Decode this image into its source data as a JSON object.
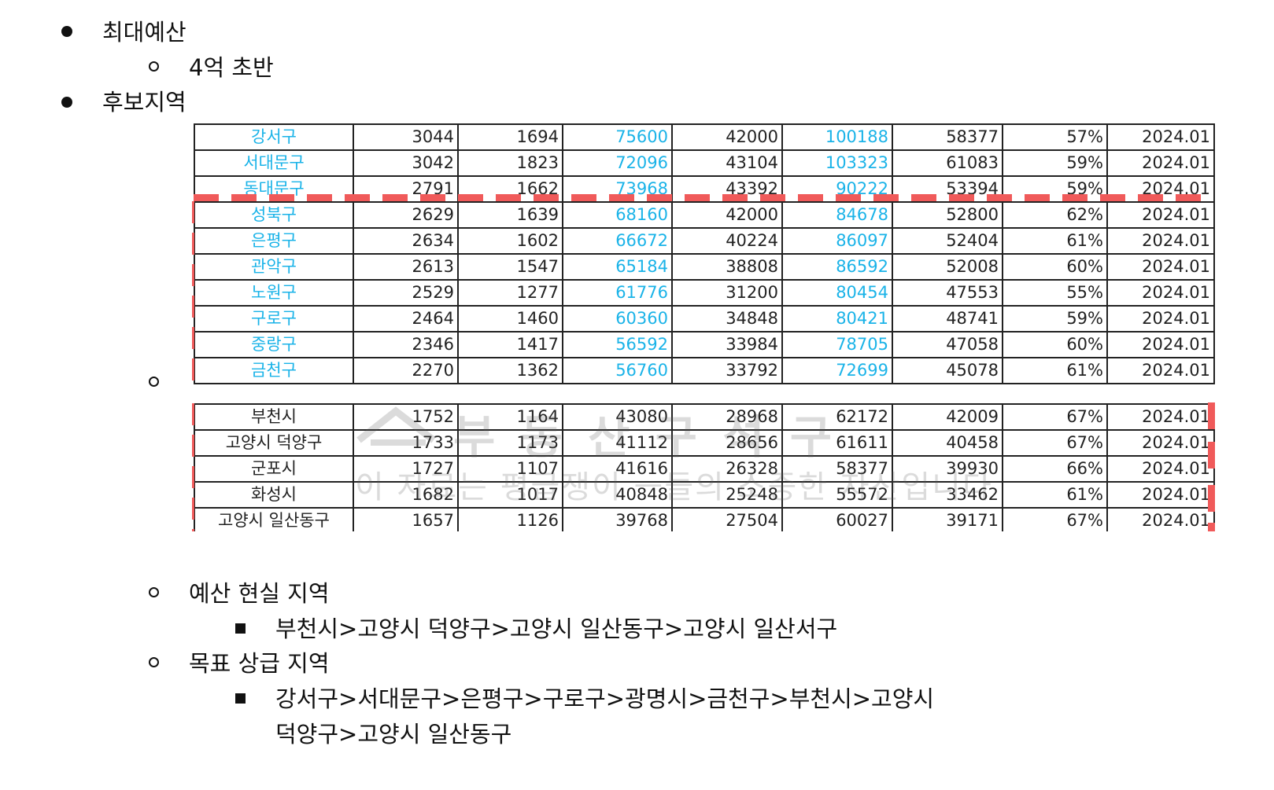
{
  "budget": {
    "label": "최대예산",
    "value": "4억 초반"
  },
  "candidates": {
    "label": "후보지역"
  },
  "table_seoul": {
    "rows": [
      [
        "강서구",
        "3044",
        "1694",
        "75600",
        "42000",
        "100188",
        "58377",
        "57%",
        "2024.01"
      ],
      [
        "서대문구",
        "3042",
        "1823",
        "72096",
        "43104",
        "103323",
        "61083",
        "59%",
        "2024.01"
      ],
      [
        "동대문구",
        "2791",
        "1662",
        "73968",
        "43392",
        "90222",
        "53394",
        "59%",
        "2024.01"
      ],
      [
        "성북구",
        "2629",
        "1639",
        "68160",
        "42000",
        "84678",
        "52800",
        "62%",
        "2024.01"
      ],
      [
        "은평구",
        "2634",
        "1602",
        "66672",
        "40224",
        "86097",
        "52404",
        "61%",
        "2024.01"
      ],
      [
        "관악구",
        "2613",
        "1547",
        "65184",
        "38808",
        "86592",
        "52008",
        "60%",
        "2024.01"
      ],
      [
        "노원구",
        "2529",
        "1277",
        "61776",
        "31200",
        "80454",
        "47553",
        "55%",
        "2024.01"
      ],
      [
        "구로구",
        "2464",
        "1460",
        "60360",
        "34848",
        "80421",
        "48741",
        "59%",
        "2024.01"
      ],
      [
        "중랑구",
        "2346",
        "1417",
        "56592",
        "33984",
        "78705",
        "47058",
        "60%",
        "2024.01"
      ],
      [
        "금천구",
        "2270",
        "1362",
        "56760",
        "33792",
        "72699",
        "45078",
        "61%",
        "2024.01"
      ]
    ]
  },
  "table_gyeonggi": {
    "rows": [
      [
        "부천시",
        "1752",
        "1164",
        "43080",
        "28968",
        "62172",
        "42009",
        "67%",
        "2024.01"
      ],
      [
        "고양시 덕양구",
        "1733",
        "1173",
        "41112",
        "28656",
        "61611",
        "40458",
        "67%",
        "2024.01"
      ],
      [
        "군포시",
        "1727",
        "1107",
        "41616",
        "26328",
        "58377",
        "39930",
        "66%",
        "2024.01"
      ],
      [
        "화성시",
        "1682",
        "1017",
        "40848",
        "25248",
        "55572",
        "33462",
        "61%",
        "2024.01"
      ],
      [
        "고양시 일산동구",
        "1657",
        "1126",
        "39768",
        "27504",
        "60027",
        "39171",
        "67%",
        "2024.01"
      ]
    ]
  },
  "watermark": {
    "line2": "이 자료는 평급쟁이 ㅡ들의 소중한 자산입니다"
  },
  "realistic": {
    "label": "예산 현실 지역",
    "list": "부천시>고양시 덕양구>고양시 일산동구>고양시 일산서구"
  },
  "target": {
    "label": "목표 상급 지역",
    "list_line1": "강서구>서대문구>은평구>구로구>광명시>금천구>부천시>고양시",
    "list_line2": "덕양구>고양시 일산동구"
  },
  "colors": {
    "link": "#1ab3e8",
    "dash": "#f05a5a"
  }
}
